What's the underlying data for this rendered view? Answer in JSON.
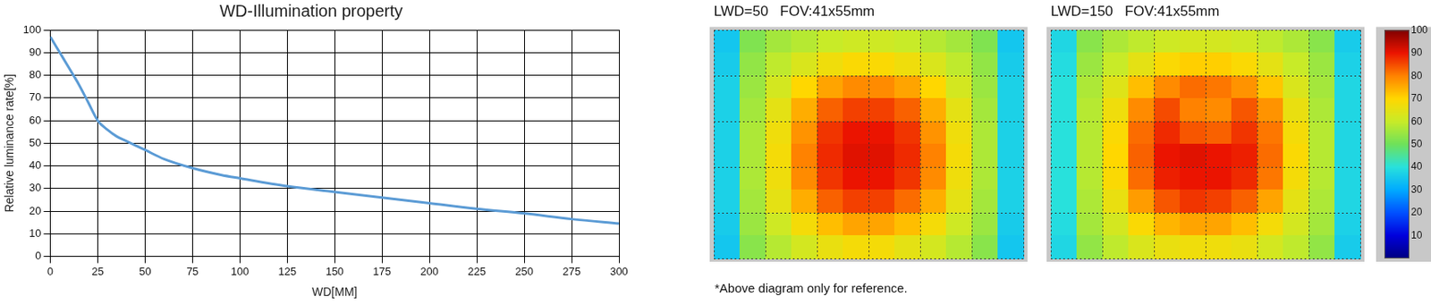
{
  "chart_data": [
    {
      "type": "line",
      "title": "WD-Illumination property",
      "x_label": "WD[MM]",
      "y_label": "Relative luminance rate[%]",
      "x": [
        0,
        5,
        10,
        15,
        20,
        25,
        30,
        35,
        40,
        50,
        60,
        75,
        90,
        100,
        125,
        150,
        175,
        200,
        225,
        250,
        275,
        300
      ],
      "values": [
        97,
        90,
        83,
        76,
        68,
        60,
        56,
        53,
        51,
        47,
        43,
        39,
        36,
        34.5,
        31,
        28.5,
        26,
        23.5,
        21,
        19,
        16.5,
        14.5
      ],
      "color": "#5b9bd5",
      "xlim": [
        0,
        300
      ],
      "xticks": [
        0,
        25,
        50,
        75,
        100,
        125,
        150,
        175,
        200,
        225,
        250,
        275,
        300
      ],
      "ylim": [
        0,
        100
      ],
      "yticks": [
        0,
        10,
        20,
        30,
        40,
        50,
        60,
        70,
        80,
        90,
        100
      ],
      "grid": true
    },
    {
      "type": "heatmap",
      "title": "LWD=50   FOV:41x55mm",
      "xlim": [
        0,
        12
      ],
      "xticks": [
        0,
        2,
        4,
        6,
        8,
        10,
        12
      ],
      "ylim": [
        0,
        10
      ],
      "yticks": [
        0,
        2,
        4,
        6,
        8,
        10
      ],
      "tick_labels": false,
      "grid": true,
      "cells": [
        [
          35,
          52,
          56,
          58,
          60,
          61,
          61,
          60,
          58,
          56,
          52,
          35
        ],
        [
          36,
          54,
          59,
          63,
          67,
          69,
          69,
          67,
          63,
          59,
          54,
          36
        ],
        [
          37,
          55,
          62,
          70,
          76,
          79,
          79,
          76,
          70,
          62,
          55,
          37
        ],
        [
          37,
          56,
          65,
          75,
          83,
          86,
          86,
          83,
          75,
          65,
          56,
          37
        ],
        [
          37,
          57,
          67,
          78,
          87,
          90,
          90,
          87,
          78,
          67,
          57,
          37
        ],
        [
          37,
          57,
          68,
          80,
          88,
          91,
          91,
          88,
          80,
          68,
          57,
          37
        ],
        [
          37,
          57,
          67,
          79,
          87,
          90,
          90,
          87,
          79,
          67,
          57,
          37
        ],
        [
          37,
          56,
          65,
          75,
          83,
          86,
          86,
          82,
          75,
          65,
          56,
          37
        ],
        [
          36,
          55,
          61,
          68,
          73,
          76,
          76,
          73,
          68,
          61,
          55,
          36
        ],
        [
          35,
          53,
          58,
          62,
          66,
          68,
          68,
          65,
          62,
          58,
          53,
          35
        ]
      ]
    },
    {
      "type": "heatmap",
      "title": "LWD=150   FOV:41x55mm",
      "xlim": [
        0,
        12
      ],
      "xticks": [
        0,
        2,
        4,
        6,
        8,
        10,
        12
      ],
      "ylim": [
        0,
        10
      ],
      "yticks": [
        0,
        2,
        4,
        6,
        8,
        10
      ],
      "tick_labels": false,
      "grid": true,
      "cells": [
        [
          38,
          53,
          57,
          59,
          61,
          62,
          62,
          61,
          59,
          57,
          53,
          36
        ],
        [
          39,
          55,
          60,
          65,
          69,
          71,
          71,
          69,
          65,
          60,
          55,
          37
        ],
        [
          40,
          57,
          64,
          73,
          79,
          82,
          81,
          78,
          72,
          63,
          56,
          38
        ],
        [
          40,
          58,
          67,
          79,
          85,
          80,
          79,
          84,
          78,
          66,
          57,
          38
        ],
        [
          40,
          58,
          69,
          82,
          88,
          84,
          83,
          87,
          81,
          68,
          58,
          38
        ],
        [
          40,
          58,
          70,
          83,
          90,
          91,
          90,
          89,
          82,
          69,
          58,
          38
        ],
        [
          40,
          58,
          69,
          82,
          89,
          90,
          90,
          88,
          81,
          68,
          58,
          38
        ],
        [
          40,
          57,
          66,
          77,
          84,
          87,
          86,
          83,
          76,
          65,
          57,
          38
        ],
        [
          39,
          56,
          62,
          69,
          74,
          76,
          76,
          73,
          68,
          62,
          56,
          37
        ],
        [
          38,
          54,
          59,
          63,
          66,
          67,
          67,
          66,
          62,
          59,
          54,
          36
        ]
      ],
      "colorbar": {
        "range": [
          0,
          100
        ],
        "ticks": [
          10,
          20,
          30,
          40,
          50,
          60,
          70,
          80,
          90,
          100
        ]
      }
    }
  ],
  "note": "*Above diagram only for reference."
}
